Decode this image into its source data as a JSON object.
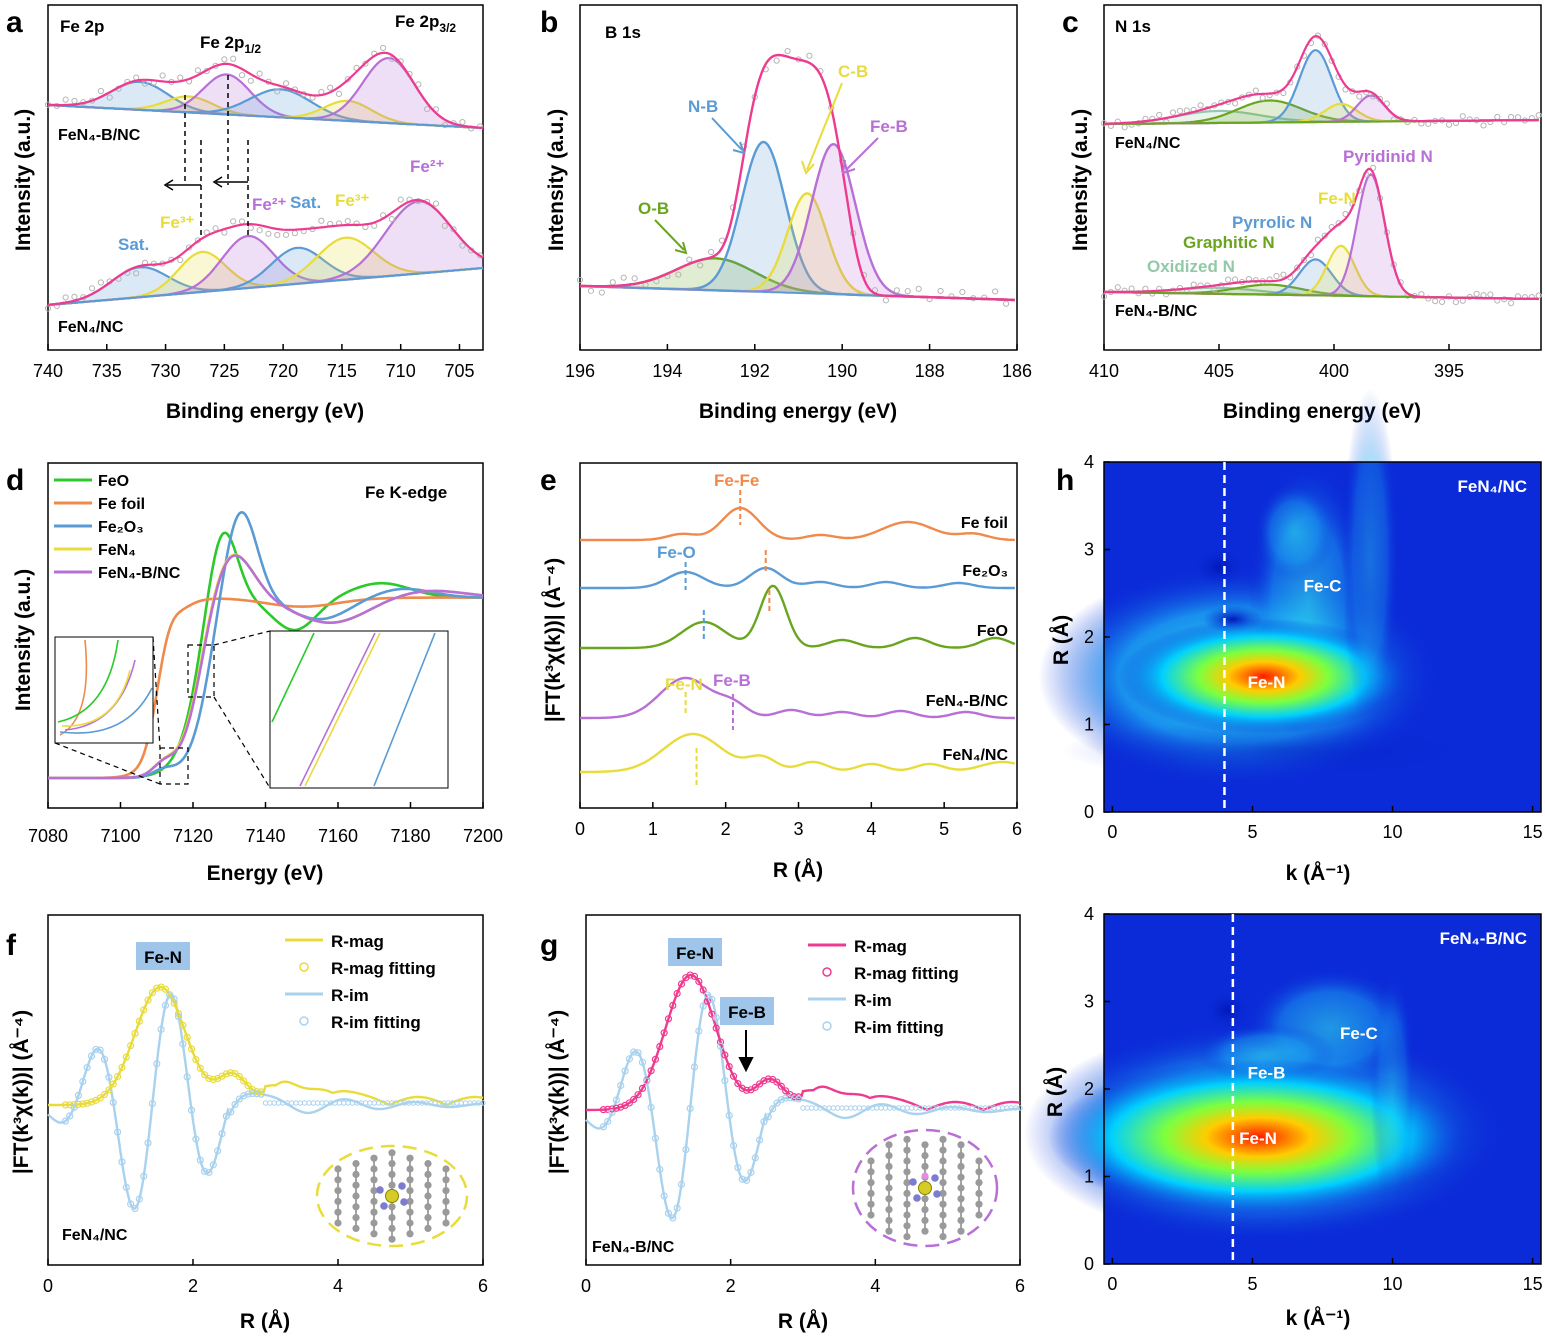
{
  "figure": {
    "panels": {
      "a": {
        "letter": "a",
        "title": "Fe 2p",
        "xlabel": "Binding energy (eV)",
        "ylabel": "Intensity (a.u.)"
      },
      "b": {
        "letter": "b",
        "title": "B 1s",
        "xlabel": "Binding energy (eV)",
        "ylabel": "Intensity (a.u.)"
      },
      "c": {
        "letter": "c",
        "title": "N 1s",
        "xlabel": "Binding energy (eV)",
        "ylabel": "Intensity (a.u.)"
      },
      "d": {
        "letter": "d",
        "title": "Fe K-edge",
        "xlabel": "Energy (eV)",
        "ylabel": "Intensity (a.u.)"
      },
      "e": {
        "letter": "e",
        "xlabel": "R (Å)",
        "ylabel": "|FT(k³χ(k))| (Å⁻⁴)"
      },
      "f": {
        "letter": "f",
        "xlabel": "R (Å)",
        "ylabel": "|FT(k³χ(k))| (Å⁻⁴)"
      },
      "g": {
        "letter": "g",
        "xlabel": "R (Å)",
        "ylabel": "|FT(k³χ(k))| (Å⁻⁴)"
      },
      "h": {
        "letter": "h",
        "xlabel": "k (Å⁻¹)",
        "ylabel": "R (Å)"
      }
    }
  },
  "colors": {
    "pink": "#ee3b8f",
    "purple": "#b86fd6",
    "blue": "#5b9bd5",
    "yellow": "#e8dc3c",
    "green": "#6aa520",
    "lightgreen": "#93c9a8",
    "orange": "#ef8a4c",
    "lightblue": "#a9d2ee",
    "brightgreen": "#2cc92c",
    "wavelet_bg": "#0b2bd8"
  },
  "chart_data": [
    {
      "panel": "a",
      "type": "line",
      "title": "Fe 2p",
      "xlabel": "Binding energy (eV)",
      "ylabel": "Intensity (a.u.)",
      "xlim": [
        740,
        703
      ],
      "xticks": [
        740,
        735,
        730,
        725,
        720,
        715,
        710,
        705
      ],
      "samples": [
        "FeN₄-B/NC",
        "FeN₄/NC"
      ],
      "annotations": [
        "Fe 2p1/2",
        "Fe 2p3/2",
        "Sat.",
        "Fe³⁺",
        "Fe²⁺",
        "Sat.",
        "Fe³⁺",
        "Fe²⁺"
      ],
      "peaks": {
        "FeN4-B/NC": [
          {
            "name": "Sat.",
            "center": 732.2,
            "color": "blue"
          },
          {
            "name": "Fe3+",
            "center": 728,
            "color": "yellow"
          },
          {
            "name": "Fe2+",
            "center": 724.8,
            "color": "purple"
          },
          {
            "name": "Sat.",
            "center": 720.2,
            "color": "blue"
          },
          {
            "name": "Fe3+",
            "center": 714.5,
            "color": "yellow"
          },
          {
            "name": "Fe2+",
            "center": 711,
            "color": "purple"
          }
        ],
        "FeN4/NC": [
          {
            "name": "Sat.",
            "center": 732.2,
            "color": "blue"
          },
          {
            "name": "Fe3+",
            "center": 726.9,
            "color": "yellow"
          },
          {
            "name": "Fe2+",
            "center": 723,
            "color": "purple"
          },
          {
            "name": "Sat.",
            "center": 718.8,
            "color": "blue"
          },
          {
            "name": "Fe3+",
            "center": 714.7,
            "color": "yellow"
          },
          {
            "name": "Fe2+",
            "center": 708.5,
            "color": "purple"
          }
        ]
      }
    },
    {
      "panel": "b",
      "type": "line",
      "title": "B 1s",
      "xlabel": "Binding energy (eV)",
      "ylabel": "Intensity (a.u.)",
      "xlim": [
        196,
        186
      ],
      "xticks": [
        196,
        194,
        192,
        190,
        188,
        186
      ],
      "annotations": [
        "N-B",
        "C-B",
        "Fe-B",
        "O-B"
      ],
      "peaks": [
        {
          "name": "O-B",
          "center": 192.9,
          "color": "green"
        },
        {
          "name": "N-B",
          "center": 191.8,
          "color": "blue"
        },
        {
          "name": "C-B",
          "center": 190.8,
          "color": "yellow"
        },
        {
          "name": "Fe-B",
          "center": 190.2,
          "color": "purple"
        }
      ]
    },
    {
      "panel": "c",
      "type": "line",
      "title": "N 1s",
      "xlabel": "Binding energy (eV)",
      "ylabel": "Intensity (a.u.)",
      "xlim": [
        410,
        391
      ],
      "xticks": [
        410,
        405,
        400,
        395
      ],
      "samples": [
        "FeN₄/NC",
        "FeN₄-B/NC"
      ],
      "annotations": [
        "Pyridinid N",
        "Fe-N",
        "Pyrrolic N",
        "Graphitic N",
        "Oxidized N"
      ],
      "peaks": [
        {
          "name": "Oxidized N",
          "center": 405,
          "color": "lightgreen"
        },
        {
          "name": "Graphitic N",
          "center": 402.8,
          "color": "green"
        },
        {
          "name": "Pyrrolic N",
          "center": 400.8,
          "color": "blue"
        },
        {
          "name": "Fe-N",
          "center": 399.7,
          "color": "yellow"
        },
        {
          "name": "Pyridinid N",
          "center": 398.4,
          "color": "purple"
        }
      ]
    },
    {
      "panel": "d",
      "type": "line",
      "title": "Fe K-edge",
      "xlabel": "Energy (eV)",
      "ylabel": "Intensity (a.u.)",
      "xlim": [
        7080,
        7200
      ],
      "xticks": [
        7080,
        7100,
        7120,
        7140,
        7160,
        7180,
        7200
      ],
      "series": [
        {
          "name": "FeO",
          "color": "brightgreen",
          "edge": 7121,
          "whiteline": 7128
        },
        {
          "name": "Fe foil",
          "color": "orange",
          "edge": 7112,
          "whiteline": 7135
        },
        {
          "name": "Fe₂O₃",
          "color": "blue",
          "edge": 7124,
          "whiteline": 7133
        },
        {
          "name": "FeN₄",
          "color": "yellow",
          "edge": 7122,
          "whiteline": 7130
        },
        {
          "name": "FeN₄-B/NC",
          "color": "purple",
          "edge": 7122.3,
          "whiteline": 7130
        }
      ]
    },
    {
      "panel": "e",
      "type": "line",
      "xlabel": "R (Å)",
      "ylabel": "|FT(k³χ(k))| (Å⁻⁴)",
      "xlim": [
        0,
        6
      ],
      "xticks": [
        0,
        1,
        2,
        3,
        4,
        5,
        6
      ],
      "series": [
        {
          "name": "Fe foil",
          "color": "orange",
          "peaks": [
            2.2,
            4.5
          ]
        },
        {
          "name": "Fe₂O₃",
          "color": "blue",
          "peaks": [
            1.45,
            2.55
          ]
        },
        {
          "name": "FeO",
          "color": "green",
          "peaks": [
            1.7,
            2.6
          ]
        },
        {
          "name": "FeN₄-B/NC",
          "color": "purple",
          "peaks": [
            1.45,
            2.1
          ]
        },
        {
          "name": "FeN₄/NC",
          "color": "yellow",
          "peaks": [
            1.55
          ]
        }
      ],
      "annotations": [
        "Fe-Fe",
        "Fe-O",
        "Fe-N",
        "Fe-B"
      ]
    },
    {
      "panel": "f",
      "type": "line",
      "xlabel": "R (Å)",
      "ylabel": "|FT(k³χ(k))| (Å⁻⁴)",
      "xlim": [
        0,
        6
      ],
      "xticks": [
        0,
        2,
        4,
        6
      ],
      "legend": [
        "R-mag",
        "R-mag fitting",
        "R-im",
        "R-im fitting"
      ],
      "sample": "FeN₄/NC",
      "peak_label": "Fe-N",
      "peak_R": 1.55
    },
    {
      "panel": "g",
      "type": "line",
      "xlabel": "R (Å)",
      "ylabel": "|FT(k³χ(k))| (Å⁻⁴)",
      "xlim": [
        0,
        6
      ],
      "xticks": [
        0,
        2,
        4,
        6
      ],
      "legend": [
        "R-mag",
        "R-mag fitting",
        "R-im",
        "R-im fitting"
      ],
      "sample": "FeN₄-B/NC",
      "peak_labels": [
        "Fe-N",
        "Fe-B"
      ],
      "peak_R": [
        1.45,
        2.15
      ]
    },
    {
      "panel": "h-top",
      "type": "heatmap",
      "xlabel": "k (Å⁻¹)",
      "ylabel": "R (Å)",
      "xlim": [
        -0.3,
        15.3
      ],
      "ylim": [
        0,
        4
      ],
      "xticks": [
        0,
        5,
        10,
        15
      ],
      "yticks": [
        0,
        1,
        2,
        3,
        4
      ],
      "sample": "FeN₄/NC",
      "dashed_k": 4,
      "features": [
        {
          "name": "Fe-N",
          "k": 5.5,
          "R": 1.5
        },
        {
          "name": "Fe-C",
          "k": 7.5,
          "R": 2.6
        }
      ]
    },
    {
      "panel": "h-bottom",
      "type": "heatmap",
      "xlabel": "k (Å⁻¹)",
      "ylabel": "R (Å)",
      "xlim": [
        -0.3,
        15.3
      ],
      "ylim": [
        0,
        4
      ],
      "xticks": [
        0,
        5,
        10,
        15
      ],
      "yticks": [
        0,
        1,
        2,
        3,
        4
      ],
      "sample": "FeN₄-B/NC",
      "dashed_k": 4.3,
      "features": [
        {
          "name": "Fe-N",
          "k": 5.2,
          "R": 1.45
        },
        {
          "name": "Fe-B",
          "k": 5.5,
          "R": 2.2
        },
        {
          "name": "Fe-C",
          "k": 8.8,
          "R": 2.65
        }
      ]
    }
  ]
}
